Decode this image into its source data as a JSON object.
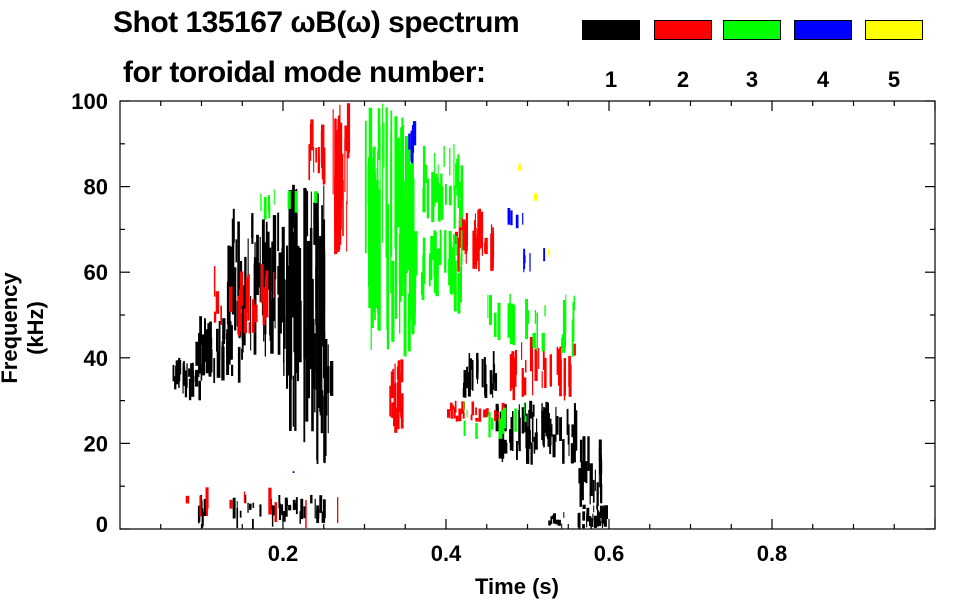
{
  "chart_data": {
    "type": "heatmap",
    "title": "Shot 135167 ωB(ω) spectrum",
    "subtitle": "for toroidal mode number:",
    "xlabel": "Time (s)",
    "ylabel": "Frequency (kHz)",
    "xlim": [
      0.0,
      1.0
    ],
    "ylim": [
      0,
      100
    ],
    "xticks": [
      "0.2",
      "0.4",
      "0.6",
      "0.8"
    ],
    "xtick_values": [
      0.2,
      0.4,
      0.6,
      0.8
    ],
    "yticks": [
      "0",
      "20",
      "40",
      "60",
      "80",
      "100"
    ],
    "ytick_values": [
      0,
      20,
      40,
      60,
      80,
      100
    ],
    "legend": [
      {
        "label": "1",
        "color": "#000000"
      },
      {
        "label": "2",
        "color": "#ff0000"
      },
      {
        "label": "3",
        "color": "#00ff00"
      },
      {
        "label": "4",
        "color": "#0000ff"
      },
      {
        "label": "5",
        "color": "#ffff00"
      }
    ],
    "series": [
      {
        "name": "n=1",
        "color": "#000000",
        "regions": [
          {
            "t": [
              0.06,
              0.1
            ],
            "f": [
              30,
              40
            ],
            "n": 25
          },
          {
            "t": [
              0.09,
              0.15
            ],
            "f": [
              34,
              50
            ],
            "n": 40
          },
          {
            "t": [
              0.13,
              0.2
            ],
            "f": [
              40,
              75
            ],
            "n": 55
          },
          {
            "t": [
              0.2,
              0.25
            ],
            "f": [
              20,
              82
            ],
            "n": 60
          },
          {
            "t": [
              0.24,
              0.26
            ],
            "f": [
              15,
              50
            ],
            "n": 15
          },
          {
            "t": [
              0.42,
              0.46
            ],
            "f": [
              30,
              42
            ],
            "n": 25
          },
          {
            "t": [
              0.46,
              0.56
            ],
            "f": [
              15,
              30
            ],
            "n": 55
          },
          {
            "t": [
              0.56,
              0.59
            ],
            "f": [
              5,
              22
            ],
            "n": 20
          },
          {
            "t": [
              0.56,
              0.6
            ],
            "f": [
              0,
              6
            ],
            "n": 30
          },
          {
            "t": [
              0.08,
              0.25
            ],
            "f": [
              0,
              8
            ],
            "n": 40
          },
          {
            "t": [
              0.52,
              0.55
            ],
            "f": [
              0,
              4
            ],
            "n": 8
          }
        ]
      },
      {
        "name": "n=2",
        "color": "#ff0000",
        "regions": [
          {
            "t": [
              0.26,
              0.28
            ],
            "f": [
              62,
              100
            ],
            "n": 25
          },
          {
            "t": [
              0.23,
              0.25
            ],
            "f": [
              80,
              96
            ],
            "n": 12
          },
          {
            "t": [
              0.33,
              0.345
            ],
            "f": [
              22,
              40
            ],
            "n": 18
          },
          {
            "t": [
              0.41,
              0.46
            ],
            "f": [
              60,
              75
            ],
            "n": 35
          },
          {
            "t": [
              0.4,
              0.47
            ],
            "f": [
              25,
              30
            ],
            "n": 25
          },
          {
            "t": [
              0.47,
              0.56
            ],
            "f": [
              30,
              45
            ],
            "n": 30
          },
          {
            "t": [
              0.11,
              0.2
            ],
            "f": [
              45,
              62
            ],
            "n": 20
          },
          {
            "t": [
              0.08,
              0.3
            ],
            "f": [
              0,
              10
            ],
            "n": 10
          }
        ]
      },
      {
        "name": "n=3",
        "color": "#00ff00",
        "regions": [
          {
            "t": [
              0.3,
              0.36
            ],
            "f": [
              40,
              100
            ],
            "n": 55
          },
          {
            "t": [
              0.34,
              0.42
            ],
            "f": [
              50,
              70
            ],
            "n": 45
          },
          {
            "t": [
              0.37,
              0.42
            ],
            "f": [
              70,
              90
            ],
            "n": 25
          },
          {
            "t": [
              0.45,
              0.56
            ],
            "f": [
              40,
              55
            ],
            "n": 25
          },
          {
            "t": [
              0.42,
              0.5
            ],
            "f": [
              20,
              30
            ],
            "n": 15
          },
          {
            "t": [
              0.17,
              0.24
            ],
            "f": [
              72,
              82
            ],
            "n": 8
          }
        ]
      },
      {
        "name": "n=4",
        "color": "#0000ff",
        "regions": [
          {
            "t": [
              0.35,
              0.36
            ],
            "f": [
              85,
              96
            ],
            "n": 5
          },
          {
            "t": [
              0.47,
              0.5
            ],
            "f": [
              70,
              76
            ],
            "n": 5
          },
          {
            "t": [
              0.49,
              0.52
            ],
            "f": [
              58,
              66
            ],
            "n": 5
          },
          {
            "t": [
              0.21,
              0.22
            ],
            "f": [
              12,
              14
            ],
            "n": 1
          }
        ]
      },
      {
        "name": "n=5",
        "color": "#ffff00",
        "regions": [
          {
            "t": [
              0.485,
              0.495
            ],
            "f": [
              83,
              86
            ],
            "n": 2
          },
          {
            "t": [
              0.505,
              0.515
            ],
            "f": [
              76,
              79
            ],
            "n": 2
          },
          {
            "t": [
              0.52,
              0.53
            ],
            "f": [
              63,
              66
            ],
            "n": 2
          }
        ]
      }
    ]
  }
}
